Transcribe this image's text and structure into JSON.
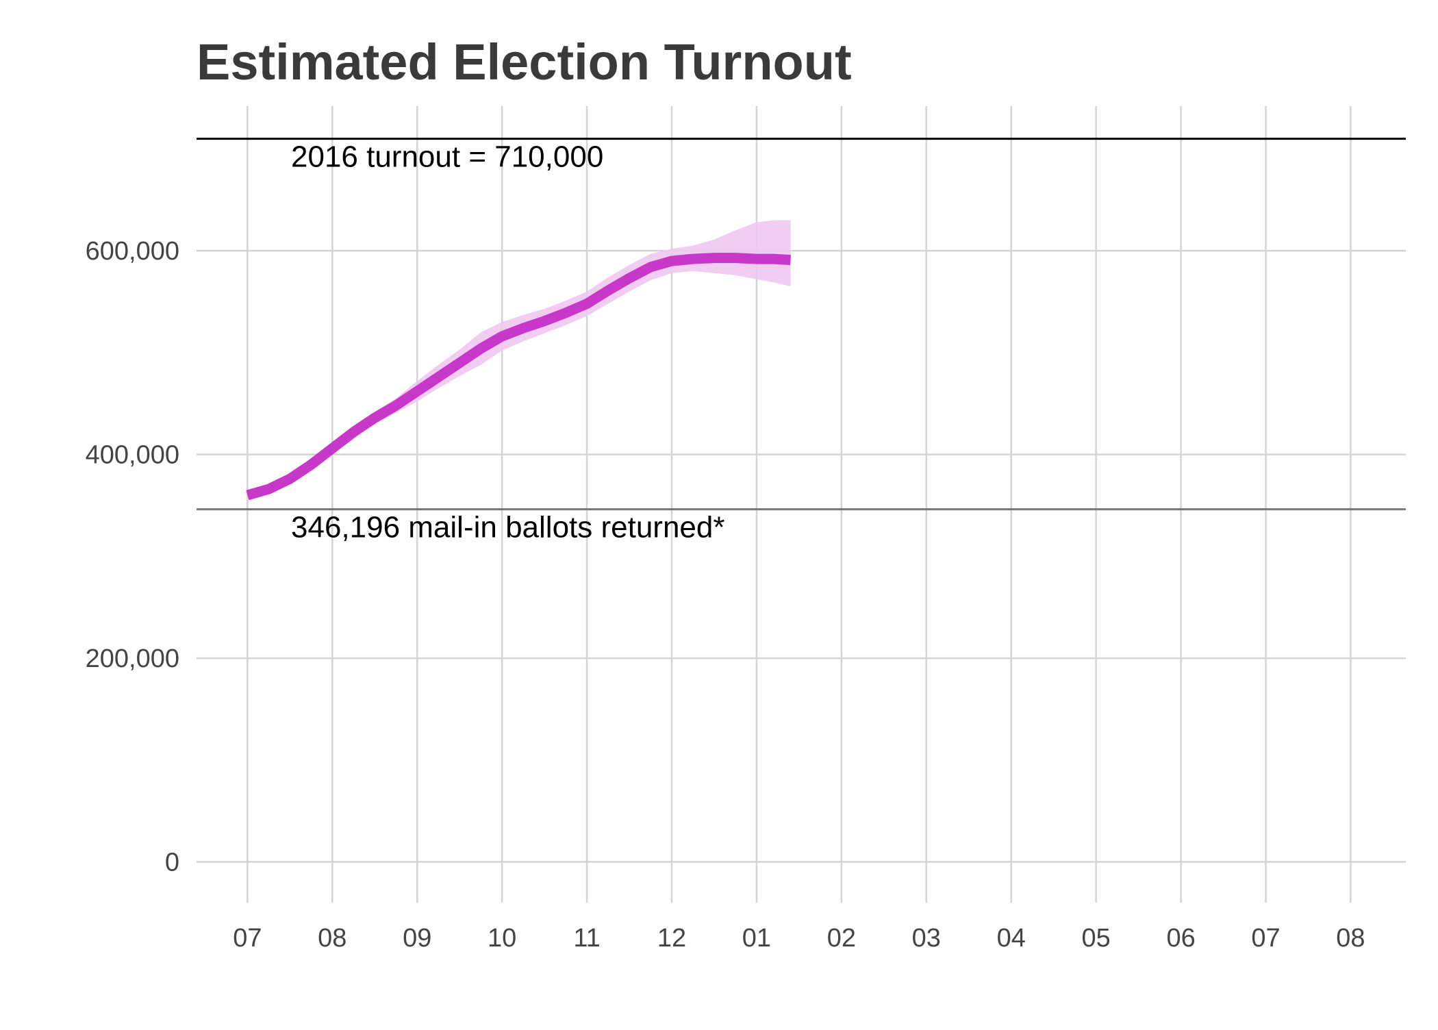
{
  "chart_data": {
    "type": "line",
    "title": "Estimated Election Turnout",
    "xlabel": "",
    "ylabel": "",
    "x_ticks": [
      "07",
      "08",
      "09",
      "10",
      "11",
      "12",
      "01",
      "02",
      "03",
      "04",
      "05",
      "06",
      "07",
      "08"
    ],
    "y_ticks": [
      0,
      200000,
      400000,
      600000
    ],
    "y_tick_labels": [
      "0",
      "200,000",
      "400,000",
      "600,000"
    ],
    "xlim": [
      -0.6,
      13.65
    ],
    "ylim": [
      -40000,
      742000
    ],
    "grid": true,
    "legend": "none",
    "series": [
      {
        "color": "#c838c8",
        "band_color": "#f0c8f0",
        "x": [
          0.0,
          0.25,
          0.5,
          0.75,
          1.0,
          1.25,
          1.5,
          1.75,
          2.0,
          2.25,
          2.5,
          2.75,
          3.0,
          3.25,
          3.5,
          3.75,
          4.0,
          4.25,
          4.5,
          4.75,
          5.0,
          5.25,
          5.5,
          5.75,
          6.0,
          6.2,
          6.4
        ],
        "values": [
          360000,
          366000,
          376000,
          390000,
          406000,
          422000,
          436000,
          448000,
          462000,
          476000,
          490000,
          504000,
          516000,
          524000,
          531000,
          539000,
          548000,
          561000,
          573000,
          584000,
          590000,
          592000,
          593000,
          593000,
          592000,
          592000,
          591000
        ],
        "lower": [
          358000,
          364000,
          374000,
          387000,
          402000,
          417000,
          430000,
          441000,
          452000,
          465000,
          477000,
          488000,
          502000,
          511000,
          519000,
          527000,
          536000,
          548000,
          560000,
          571000,
          578000,
          580000,
          578000,
          576000,
          572000,
          569000,
          565000
        ],
        "upper": [
          362000,
          368000,
          378000,
          393000,
          410000,
          427000,
          442000,
          455000,
          472000,
          488000,
          503000,
          520000,
          530000,
          537000,
          543000,
          551000,
          560000,
          574000,
          586000,
          597000,
          602000,
          605000,
          611000,
          620000,
          628000,
          630000,
          630000
        ]
      }
    ],
    "reference_lines": [
      {
        "value": 710000,
        "label": "2016 turnout = 710,000",
        "color": "#000000"
      },
      {
        "value": 346196,
        "label": "346,196 mail-in ballots returned*",
        "color": "#777777"
      }
    ]
  }
}
